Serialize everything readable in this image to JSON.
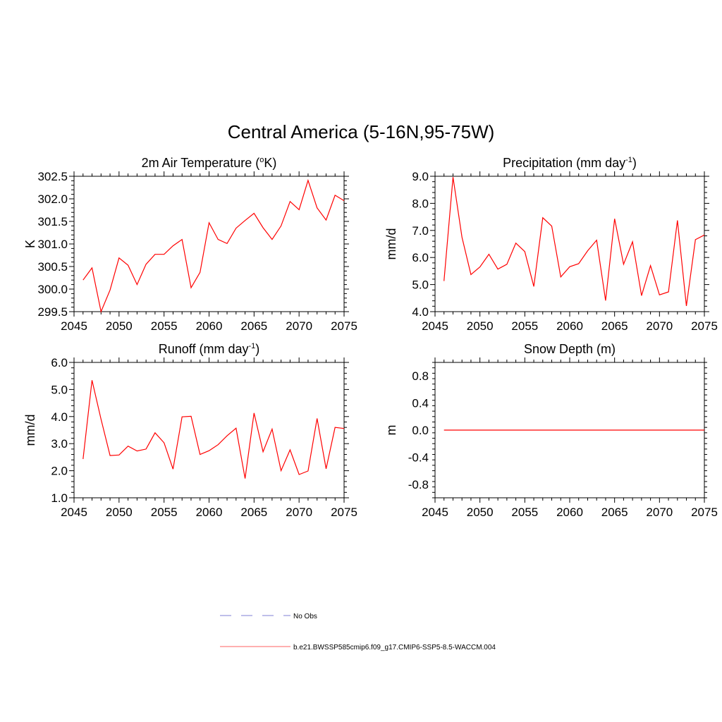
{
  "title": "Central America (5-16N,95-75W)",
  "chart_data": [
    {
      "type": "line",
      "title": "2m Air Temperature (",
      "title_sup": "o",
      "title_after": "K)",
      "ylabel": "K",
      "xlim": [
        2045,
        2075
      ],
      "ylim": [
        299.5,
        302.5
      ],
      "xticks": [
        "2045",
        "2050",
        "2055",
        "2060",
        "2065",
        "2070",
        "2075"
      ],
      "yticks": [
        "299.5",
        "300.0",
        "300.5",
        "301.0",
        "301.5",
        "302.0",
        "302.5"
      ],
      "color": "#ff0000",
      "x": [
        2046,
        2047,
        2048,
        2049,
        2050,
        2051,
        2052,
        2053,
        2054,
        2055,
        2056,
        2057,
        2058,
        2059,
        2060,
        2061,
        2062,
        2063,
        2064,
        2065,
        2066,
        2067,
        2068,
        2069,
        2070,
        2071,
        2072,
        2073,
        2074,
        2075
      ],
      "y": [
        300.2,
        300.47,
        299.5,
        299.98,
        300.69,
        300.53,
        300.1,
        300.55,
        300.77,
        300.77,
        300.96,
        301.1,
        300.03,
        300.37,
        301.47,
        301.1,
        301.01,
        301.35,
        301.52,
        301.68,
        301.36,
        301.1,
        301.4,
        301.94,
        301.76,
        302.41,
        301.8,
        301.53,
        302.08,
        301.96
      ]
    },
    {
      "type": "line",
      "title": "Precipitation (mm day",
      "title_sup": "-1",
      "title_after": ")",
      "ylabel": "mm/d",
      "xlim": [
        2045,
        2075
      ],
      "ylim": [
        4.0,
        9.0
      ],
      "xticks": [
        "2045",
        "2050",
        "2055",
        "2060",
        "2065",
        "2070",
        "2075"
      ],
      "yticks": [
        "4.0",
        "5.0",
        "6.0",
        "7.0",
        "8.0",
        "9.0"
      ],
      "color": "#ff0000",
      "x": [
        2046,
        2047,
        2048,
        2049,
        2050,
        2051,
        2052,
        2053,
        2054,
        2055,
        2056,
        2057,
        2058,
        2059,
        2060,
        2061,
        2062,
        2063,
        2064,
        2065,
        2066,
        2067,
        2068,
        2069,
        2070,
        2071,
        2072,
        2073,
        2074,
        2075
      ],
      "y": [
        5.13,
        8.97,
        6.75,
        5.37,
        5.65,
        6.12,
        5.57,
        5.75,
        6.53,
        6.22,
        4.93,
        7.47,
        7.16,
        5.28,
        5.66,
        5.77,
        6.25,
        6.64,
        4.41,
        7.43,
        5.75,
        6.58,
        4.59,
        5.7,
        4.62,
        4.73,
        7.37,
        4.21,
        6.66,
        6.83
      ]
    },
    {
      "type": "line",
      "title": "Runoff (mm day",
      "title_sup": "-1",
      "title_after": ")",
      "ylabel": "mm/d",
      "xlim": [
        2045,
        2075
      ],
      "ylim": [
        1.0,
        6.0
      ],
      "xticks": [
        "2045",
        "2050",
        "2055",
        "2060",
        "2065",
        "2070",
        "2075"
      ],
      "yticks": [
        "1.0",
        "2.0",
        "3.0",
        "4.0",
        "5.0",
        "6.0"
      ],
      "color": "#ff0000",
      "x": [
        2046,
        2047,
        2048,
        2049,
        2050,
        2051,
        2052,
        2053,
        2054,
        2055,
        2056,
        2057,
        2058,
        2059,
        2060,
        2061,
        2062,
        2063,
        2064,
        2065,
        2066,
        2067,
        2068,
        2069,
        2070,
        2071,
        2072,
        2073,
        2074,
        2075
      ],
      "y": [
        2.43,
        5.34,
        3.9,
        2.56,
        2.58,
        2.91,
        2.73,
        2.8,
        3.4,
        3.03,
        2.06,
        3.99,
        4.01,
        2.6,
        2.74,
        2.96,
        3.29,
        3.57,
        1.71,
        4.13,
        2.7,
        3.54,
        2.0,
        2.77,
        1.86,
        1.99,
        3.93,
        2.07,
        3.6,
        3.56
      ]
    },
    {
      "type": "line",
      "title": "Snow Depth (m)",
      "title_sup": "",
      "title_after": "",
      "ylabel": "m",
      "xlim": [
        2045,
        2075
      ],
      "ylim": [
        -1.0,
        1.0
      ],
      "xticks": [
        "2045",
        "2050",
        "2055",
        "2060",
        "2065",
        "2070",
        "2075"
      ],
      "yticks": [
        "-0.8",
        "-0.4",
        "0.0",
        "0.4",
        "0.8"
      ],
      "ytick_values": [
        -0.8,
        -0.4,
        0.0,
        0.4,
        0.8
      ],
      "color": "#ff0000",
      "x": [
        2046,
        2047,
        2048,
        2049,
        2050,
        2051,
        2052,
        2053,
        2054,
        2055,
        2056,
        2057,
        2058,
        2059,
        2060,
        2061,
        2062,
        2063,
        2064,
        2065,
        2066,
        2067,
        2068,
        2069,
        2070,
        2071,
        2072,
        2073,
        2074,
        2075
      ],
      "y": [
        0,
        0,
        0,
        0,
        0,
        0,
        0,
        0,
        0,
        0,
        0,
        0,
        0,
        0,
        0,
        0,
        0,
        0,
        0,
        0,
        0,
        0,
        0,
        0,
        0,
        0,
        0,
        0,
        0,
        0
      ]
    }
  ],
  "legend": [
    {
      "label": "No Obs",
      "color": "#9999dd",
      "style": "dashed"
    },
    {
      "label": "b.e21.BWSSP585cmip6.f09_g17.CMIP6-SSP5-8.5-WACCM.004",
      "color": "#ff8080",
      "style": "solid"
    }
  ]
}
